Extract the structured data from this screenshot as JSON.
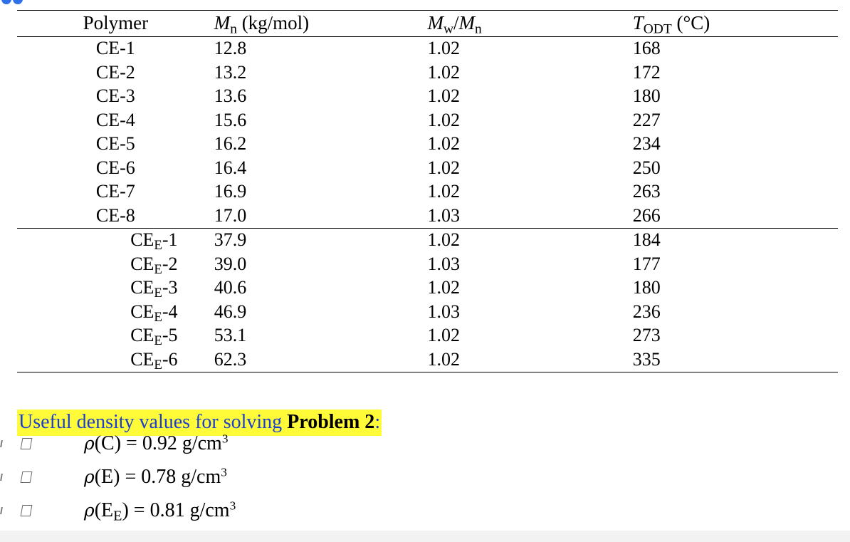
{
  "table": {
    "headers": {
      "polymer": "Polymer",
      "mn_symbol": "M",
      "mn_sub": "n",
      "mn_units": " (kg/mol)",
      "mw_symbol": "M",
      "mw_sub": "w",
      "mw_slash": "/",
      "mw_symbol2": "M",
      "mw_sub2": "n",
      "todt_symbol": "T",
      "todt_sub": "ODT",
      "todt_units": " (°C)"
    },
    "rows": [
      {
        "polymer_base": "CE",
        "polymer_sub": "",
        "polymer_suffix": "-1",
        "mn": "12.8",
        "mw_mn": "1.02",
        "todt": "168"
      },
      {
        "polymer_base": "CE",
        "polymer_sub": "",
        "polymer_suffix": "-2",
        "mn": "13.2",
        "mw_mn": "1.02",
        "todt": "172"
      },
      {
        "polymer_base": "CE",
        "polymer_sub": "",
        "polymer_suffix": "-3",
        "mn": "13.6",
        "mw_mn": "1.02",
        "todt": "180"
      },
      {
        "polymer_base": "CE",
        "polymer_sub": "",
        "polymer_suffix": "-4",
        "mn": "15.6",
        "mw_mn": "1.02",
        "todt": "227"
      },
      {
        "polymer_base": "CE",
        "polymer_sub": "",
        "polymer_suffix": "-5",
        "mn": "16.2",
        "mw_mn": "1.02",
        "todt": "234"
      },
      {
        "polymer_base": "CE",
        "polymer_sub": "",
        "polymer_suffix": "-6",
        "mn": "16.4",
        "mw_mn": "1.02",
        "todt": "250"
      },
      {
        "polymer_base": "CE",
        "polymer_sub": "",
        "polymer_suffix": "-7",
        "mn": "16.9",
        "mw_mn": "1.02",
        "todt": "263"
      },
      {
        "polymer_base": "CE",
        "polymer_sub": "",
        "polymer_suffix": "-8",
        "mn": "17.0",
        "mw_mn": "1.03",
        "todt": "266"
      },
      {
        "polymer_base": "CE",
        "polymer_sub": "E",
        "polymer_suffix": "-1",
        "mn": "37.9",
        "mw_mn": "1.02",
        "todt": "184"
      },
      {
        "polymer_base": "CE",
        "polymer_sub": "E",
        "polymer_suffix": "-2",
        "mn": "39.0",
        "mw_mn": "1.03",
        "todt": "177"
      },
      {
        "polymer_base": "CE",
        "polymer_sub": "E",
        "polymer_suffix": "-3",
        "mn": "40.6",
        "mw_mn": "1.02",
        "todt": "180"
      },
      {
        "polymer_base": "CE",
        "polymer_sub": "E",
        "polymer_suffix": "-4",
        "mn": "46.9",
        "mw_mn": "1.03",
        "todt": "236"
      },
      {
        "polymer_base": "CE",
        "polymer_sub": "E",
        "polymer_suffix": "-5",
        "mn": "53.1",
        "mw_mn": "1.02",
        "todt": "273"
      },
      {
        "polymer_base": "CE",
        "polymer_sub": "E",
        "polymer_suffix": "-6",
        "mn": "62.3",
        "mw_mn": "1.02",
        "todt": "335"
      }
    ]
  },
  "notes": {
    "intro_text": "Useful density values for solving ",
    "intro_bold": "Problem 2",
    "intro_colon": ":",
    "items": [
      {
        "rho": "ρ",
        "open_paren": "(",
        "species": "C",
        "species_sub": "",
        "close_paren": ")",
        "value": " = 0.92 g/cm",
        "exponent": "3"
      },
      {
        "rho": "ρ",
        "open_paren": "(",
        "species": "E",
        "species_sub": "",
        "close_paren": ")",
        "value": " = 0.78 g/cm",
        "exponent": "3"
      },
      {
        "rho": "ρ",
        "open_paren": "(",
        "species": "E",
        "species_sub": "E",
        "close_paren": ")",
        "value": " = 0.81 g/cm",
        "exponent": "3"
      }
    ]
  },
  "colors": {
    "highlight": "#fffb39",
    "highlight_text": "#1a3fd0",
    "accent": "#2f6fe8"
  },
  "icons": {
    "bullet": "checkbox-icon",
    "left_margin_mark": "margin-mark-icon"
  }
}
